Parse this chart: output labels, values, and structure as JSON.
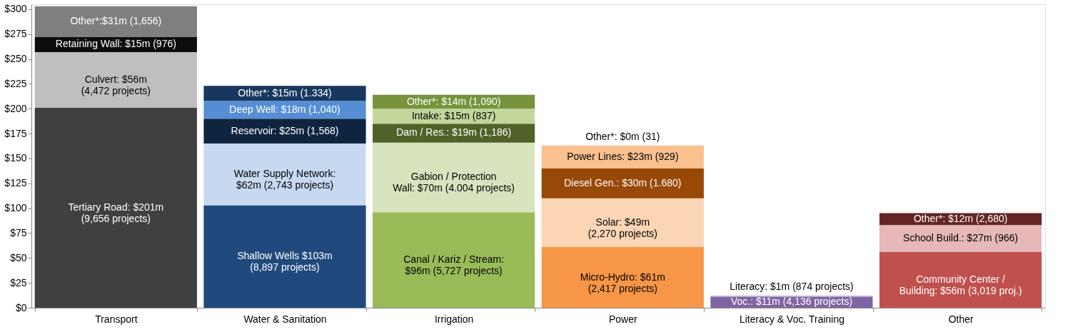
{
  "chart_data": {
    "type": "bar",
    "stacked": true,
    "categories": [
      "Transport",
      "Water & Sanitation",
      "Irrigation",
      "Power",
      "Literacy & Voc. Training",
      "Other"
    ],
    "series": [
      {
        "colors": [
          "#404040",
          "#1f497d",
          "#9bbb59",
          "#f79646",
          "#8064a2",
          "#c0504d"
        ],
        "values": [
          201,
          103,
          96,
          61,
          11,
          56
        ],
        "value_labels": [
          "Tertiary Road: $201m\n(9,656 projects)",
          "Shallow  Wells $103m\n(8,897 projects)",
          "Canal / Kariz / Stream:\n$96m (5,727 projects)",
          "Micro-Hydro: $61m\n(2,417 projects)",
          "Voc.: $11m (4,136 projects)",
          "Community Center /\nBuilding: $56m (3,019 proj.)"
        ]
      },
      {
        "colors": [
          "#bfbfbf",
          "#c6d9f1",
          "#d7e4bd",
          "#fcd5b5",
          "#b3a2c7",
          "#e6b9b8"
        ],
        "values": [
          56,
          62,
          70,
          49,
          1,
          27
        ],
        "value_labels": [
          "Culvert: $56m\n(4,472 projects)",
          "Water Supply Network:\n$62m (2,743 projects)",
          "Gabion / Protection\nWall: $70m (4.004 projects)",
          "Solar: $49m\n(2,270 projects)",
          "Literacy: $1m (874 projects)",
          "School Build.: $27m (966)"
        ]
      },
      {
        "colors": [
          "#0d0d0d",
          "#0f243e",
          "#4f6228",
          "#984807",
          null,
          "#632523"
        ],
        "values": [
          15,
          25,
          19,
          30,
          null,
          12
        ],
        "value_labels": [
          "Retaining Wall: $15m (976)",
          "Reservoir: $25m (1,568)",
          "Dam / Res.: $19m (1,186)",
          "Diesel Gen.: $30m (1.680)",
          null,
          "Other*: $12m (2,680)"
        ]
      },
      {
        "colors": [
          "#7f7f7f",
          "#558ed5",
          "#c3d69b",
          "#fac090",
          null,
          null
        ],
        "values": [
          31,
          18,
          15,
          23,
          null,
          null
        ],
        "value_labels": [
          "Other*:$31m (1,656)",
          "Deep Well: $18m (1,040)",
          "Intake: $15m (837)",
          "Power Lines: $23m (929)",
          null,
          null
        ]
      },
      {
        "colors": [
          null,
          "#17375e",
          "#77933c",
          "#fcd5b5",
          null,
          null
        ],
        "values": [
          null,
          15,
          14,
          0,
          null,
          null
        ],
        "value_labels": [
          null,
          "Other*: $15m (1.334)",
          "Other*: $14m (1,090)",
          "Other*: $0m (31)",
          null,
          null
        ]
      }
    ],
    "ylim": [
      0,
      305
    ],
    "yticks": [
      {
        "value": 0,
        "label": "$0"
      },
      {
        "value": 25,
        "label": "$25"
      },
      {
        "value": 50,
        "label": "$50"
      },
      {
        "value": 75,
        "label": "$75"
      },
      {
        "value": 100,
        "label": "$100"
      },
      {
        "value": 125,
        "label": "$125"
      },
      {
        "value": 150,
        "label": "$150"
      },
      {
        "value": 175,
        "label": "$175"
      },
      {
        "value": 200,
        "label": "$200"
      },
      {
        "value": 225,
        "label": "$225"
      },
      {
        "value": 250,
        "label": "$250"
      },
      {
        "value": 275,
        "label": "$275"
      },
      {
        "value": 300,
        "label": "$300"
      }
    ],
    "grid": false
  }
}
